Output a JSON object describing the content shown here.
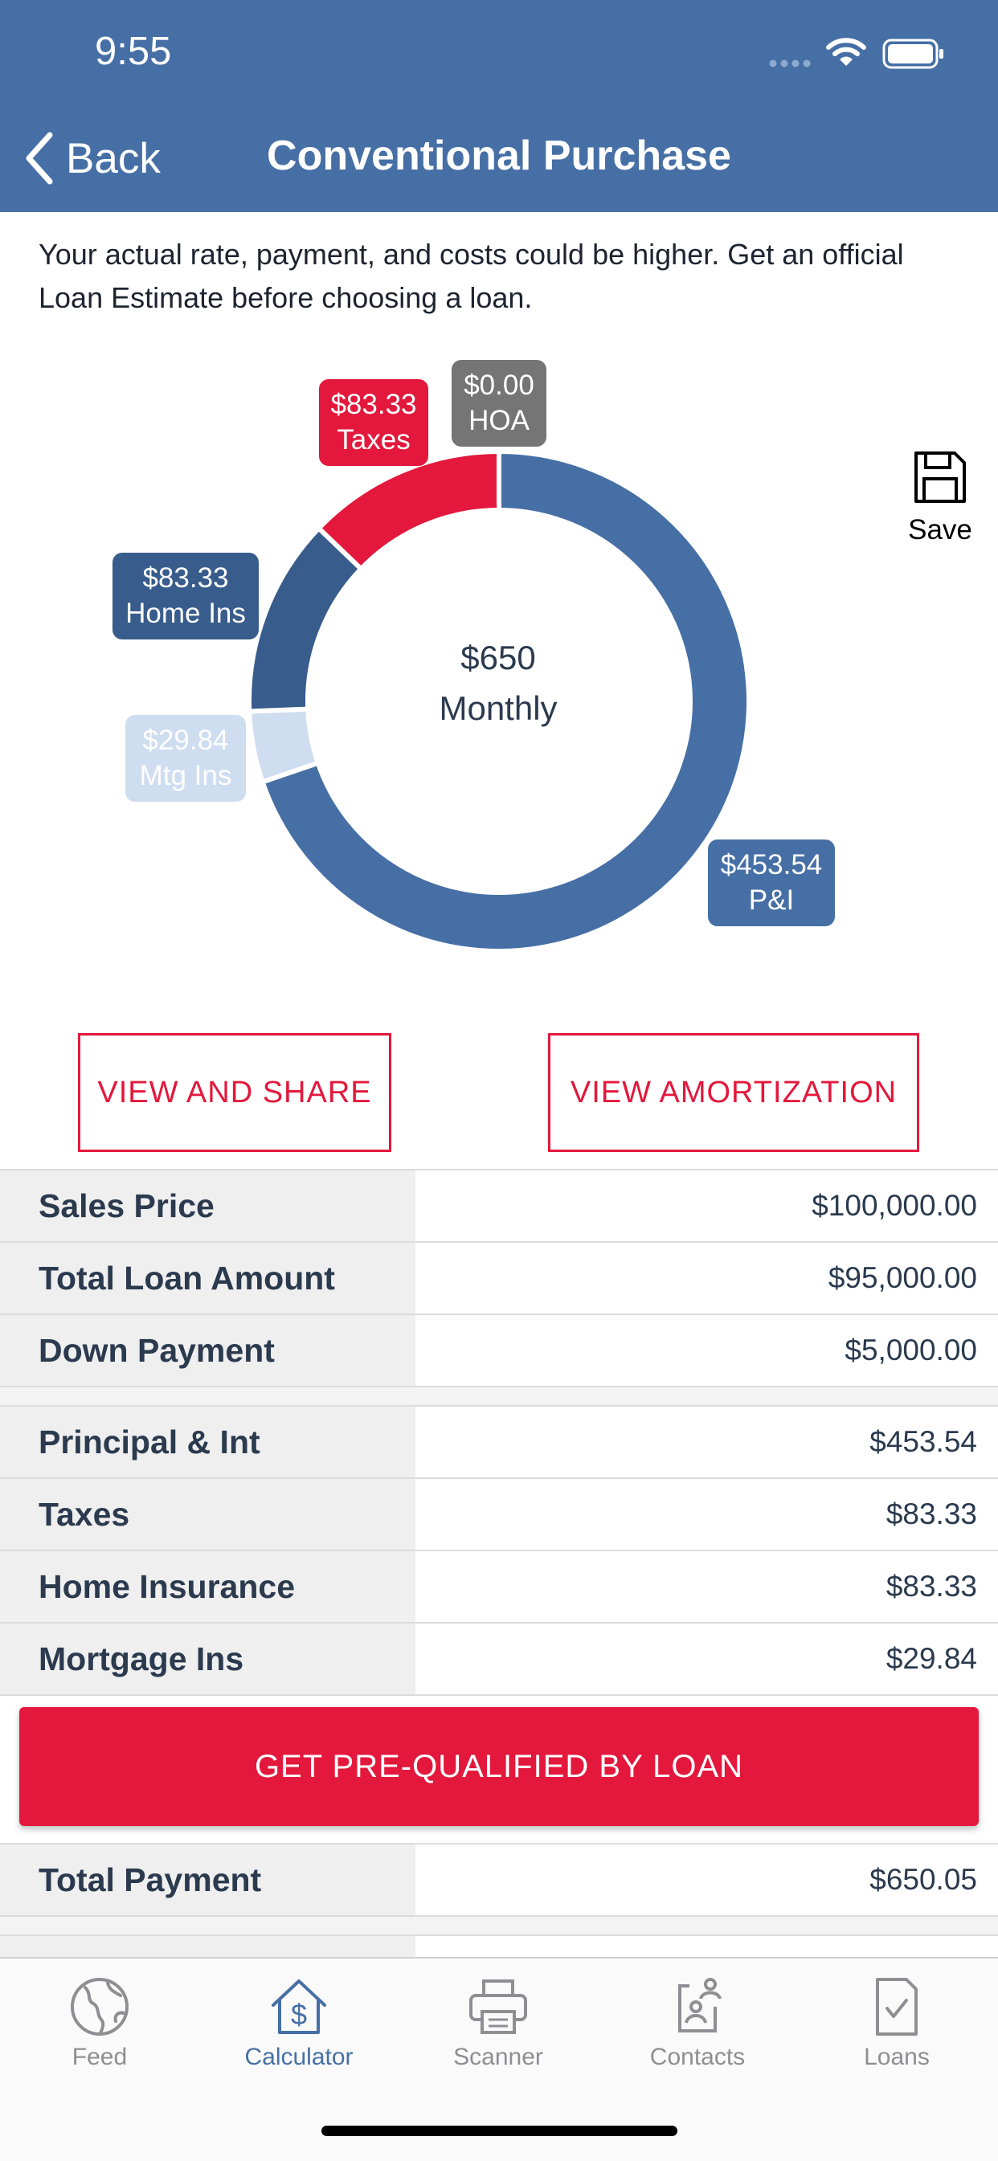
{
  "status_bar": {
    "time": "9:55"
  },
  "header": {
    "back_label": "Back",
    "title": "Conventional Purchase"
  },
  "disclaimer": "Your actual rate, payment, and costs could be higher. Get an official Loan Estimate before choosing a loan.",
  "chart_data": {
    "type": "pie",
    "donut": true,
    "center_amount": "$650",
    "center_label": "Monthly",
    "slices": [
      {
        "amount": "$453.54",
        "label": "P&I",
        "value": 453.54,
        "color": "#466fa5"
      },
      {
        "amount": "$29.84",
        "label": "Mtg Ins",
        "value": 29.84,
        "color": "#cfddf0"
      },
      {
        "amount": "$83.33",
        "label": "Home Ins",
        "value": 83.33,
        "color": "#385c8b"
      },
      {
        "amount": "$83.33",
        "label": "Taxes",
        "value": 83.33,
        "color": "#e3183c"
      },
      {
        "amount": "$0.00",
        "label": "HOA",
        "value": 0,
        "color": "#757575"
      }
    ]
  },
  "save_label": "Save",
  "buttons": {
    "view_share": "VIEW AND SHARE",
    "view_amortization": "VIEW AMORTIZATION"
  },
  "loan_rows": [
    {
      "label": "Sales Price",
      "value": "$100,000.00"
    },
    {
      "label": "Total Loan Amount",
      "value": "$95,000.00"
    },
    {
      "label": "Down Payment",
      "value": "$5,000.00"
    }
  ],
  "payment_rows": [
    {
      "label": "Principal & Int",
      "value": "$453.54"
    },
    {
      "label": "Taxes",
      "value": "$83.33"
    },
    {
      "label": "Home Insurance",
      "value": "$83.33"
    },
    {
      "label": "Mortgage Ins",
      "value": "$29.84"
    }
  ],
  "cta_label": "GET PRE-QUALIFIED BY LOAN",
  "total_row": {
    "label": "Total Payment",
    "value": "$650.05"
  },
  "tabs": [
    {
      "label": "Feed",
      "icon": "globe-icon",
      "active": false
    },
    {
      "label": "Calculator",
      "icon": "house-dollar-icon",
      "active": true
    },
    {
      "label": "Scanner",
      "icon": "printer-icon",
      "active": false
    },
    {
      "label": "Contacts",
      "icon": "contacts-icon",
      "active": false
    },
    {
      "label": "Loans",
      "icon": "document-check-icon",
      "active": false
    }
  ],
  "colors": {
    "brand_blue": "#466fa5",
    "accent_red": "#e3183c",
    "tab_active": "#466fa5",
    "tab_inactive": "#8e8e93"
  }
}
